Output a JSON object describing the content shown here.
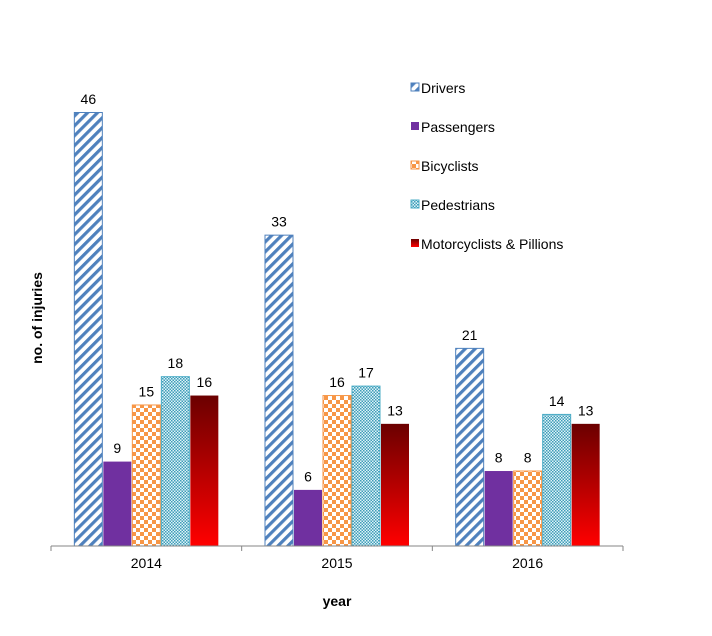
{
  "chart_data": {
    "type": "bar",
    "title": "",
    "xlabel": "year",
    "ylabel": "no. of injuries",
    "categories": [
      "2014",
      "2015",
      "2016"
    ],
    "ylim": [
      0,
      48
    ],
    "grid": false,
    "legend_position": "top-right",
    "series": [
      {
        "name": "Drivers",
        "values": [
          46,
          33,
          21
        ],
        "color": "#4f81bd",
        "pattern": "diagonal-stripes"
      },
      {
        "name": "Passengers",
        "values": [
          9,
          6,
          8
        ],
        "color": "#7030a0",
        "pattern": "solid"
      },
      {
        "name": "Bicyclists",
        "values": [
          15,
          16,
          8
        ],
        "color": "#f79646",
        "pattern": "checker"
      },
      {
        "name": "Pedestrians",
        "values": [
          18,
          17,
          14
        ],
        "color": "#4bacc6",
        "pattern": "dots"
      },
      {
        "name": "Motorcyclists & Pillions",
        "values": [
          16,
          13,
          13
        ],
        "color": "#c00000",
        "pattern": "gradient-dark-to-red"
      }
    ]
  }
}
